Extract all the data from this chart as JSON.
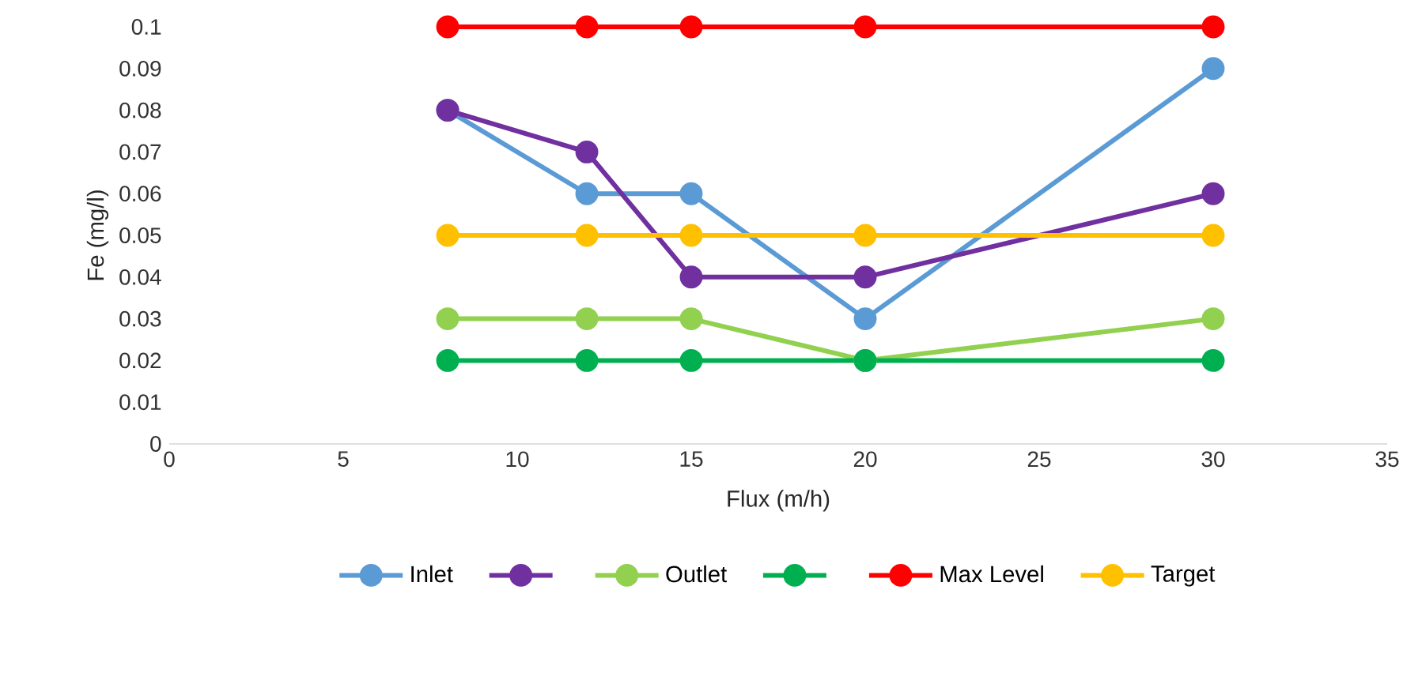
{
  "chart_data": {
    "type": "line",
    "xlabel": "Flux (m/h)",
    "ylabel": "Fe (mg/l)",
    "x": [
      8,
      12,
      15,
      20,
      30
    ],
    "series": [
      {
        "name": "Inlet",
        "color": "#5b9bd5",
        "values": [
          0.08,
          0.06,
          0.06,
          0.03,
          0.09
        ]
      },
      {
        "color": "#7030a0",
        "values": [
          0.08,
          0.07,
          0.04,
          0.04,
          0.06
        ]
      },
      {
        "name": "Outlet",
        "color": "#92d050",
        "values": [
          0.03,
          0.03,
          0.03,
          0.02,
          0.03
        ]
      },
      {
        "color": "#00b050",
        "values": [
          0.02,
          0.02,
          0.02,
          0.02,
          0.02
        ]
      },
      {
        "name": "Max Level",
        "color": "#ff0000",
        "values": [
          0.1,
          0.1,
          0.1,
          0.1,
          0.1
        ]
      },
      {
        "name": "Target",
        "color": "#ffc000",
        "values": [
          0.05,
          0.05,
          0.05,
          0.05,
          0.05
        ]
      }
    ],
    "xlim": [
      0,
      35
    ],
    "xticks": [
      0,
      5,
      10,
      15,
      20,
      25,
      30,
      35
    ],
    "ylim": [
      0,
      0.1
    ],
    "yticks": [
      0,
      0.01,
      0.02,
      0.03,
      0.04,
      0.05,
      0.06,
      0.07,
      0.08,
      0.09,
      0.1
    ],
    "legend": "bottom",
    "marker": "circle",
    "line_style": "solid"
  }
}
